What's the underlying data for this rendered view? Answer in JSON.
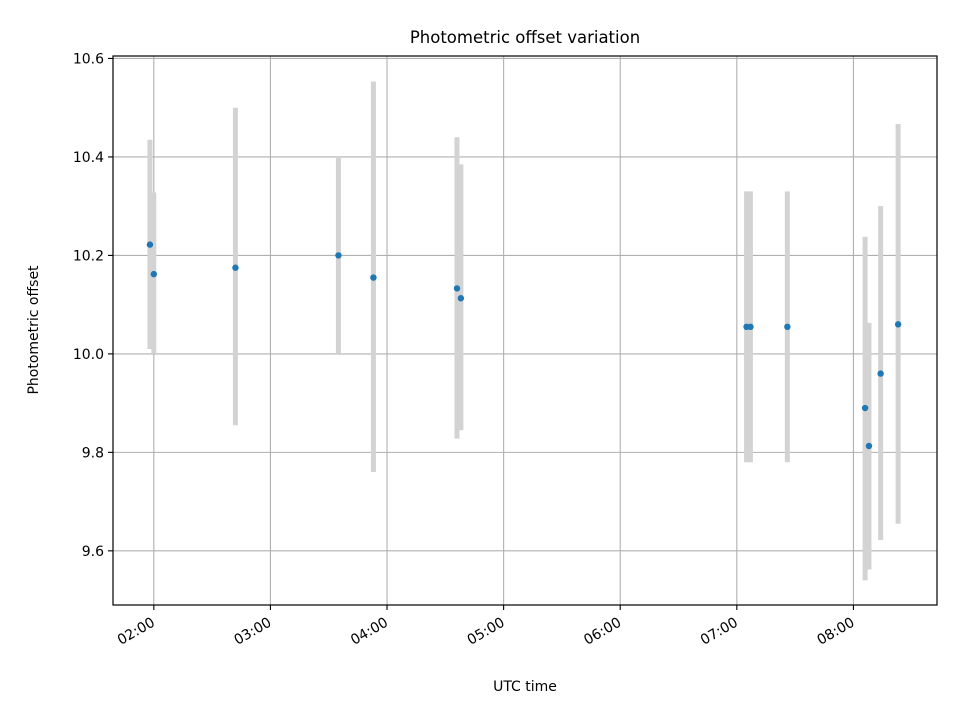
{
  "chart_data": {
    "type": "scatter",
    "title": "Photometric offset variation",
    "xlabel": "UTC time",
    "ylabel": "Photometric offset",
    "x_ticks": [
      "02:00",
      "03:00",
      "04:00",
      "05:00",
      "06:00",
      "07:00",
      "08:00"
    ],
    "y_ticks": [
      "9.6",
      "9.8",
      "10.0",
      "10.2",
      "10.4",
      "10.6"
    ],
    "xlim": [
      "01:39",
      "08:43"
    ],
    "ylim": [
      9.49,
      10.605
    ],
    "grid": true,
    "legend": "none",
    "colors": {
      "points": "#1f77b4",
      "errorbars": "#d3d3d3",
      "grid": "#b0b0b0"
    },
    "points": [
      {
        "time": "01:58",
        "y": 10.222,
        "ylow": 10.01,
        "yhigh": 10.435
      },
      {
        "time": "02:00",
        "y": 10.162,
        "ylow": 10.0,
        "yhigh": 10.328
      },
      {
        "time": "02:42",
        "y": 10.175,
        "ylow": 9.855,
        "yhigh": 10.5
      },
      {
        "time": "03:35",
        "y": 10.2,
        "ylow": 10.0,
        "yhigh": 10.4
      },
      {
        "time": "03:53",
        "y": 10.155,
        "ylow": 9.76,
        "yhigh": 10.553
      },
      {
        "time": "04:36",
        "y": 10.133,
        "ylow": 9.828,
        "yhigh": 10.44
      },
      {
        "time": "04:38",
        "y": 10.113,
        "ylow": 9.845,
        "yhigh": 10.385
      },
      {
        "time": "07:05",
        "y": 10.055,
        "ylow": 9.78,
        "yhigh": 10.33
      },
      {
        "time": "07:07",
        "y": 10.055,
        "ylow": 9.78,
        "yhigh": 10.33
      },
      {
        "time": "07:26",
        "y": 10.055,
        "ylow": 9.78,
        "yhigh": 10.33
      },
      {
        "time": "08:06",
        "y": 9.89,
        "ylow": 9.54,
        "yhigh": 10.238
      },
      {
        "time": "08:08",
        "y": 9.813,
        "ylow": 9.562,
        "yhigh": 10.063
      },
      {
        "time": "08:14",
        "y": 9.96,
        "ylow": 9.622,
        "yhigh": 10.3
      },
      {
        "time": "08:23",
        "y": 10.06,
        "ylow": 9.655,
        "yhigh": 10.467
      }
    ]
  }
}
